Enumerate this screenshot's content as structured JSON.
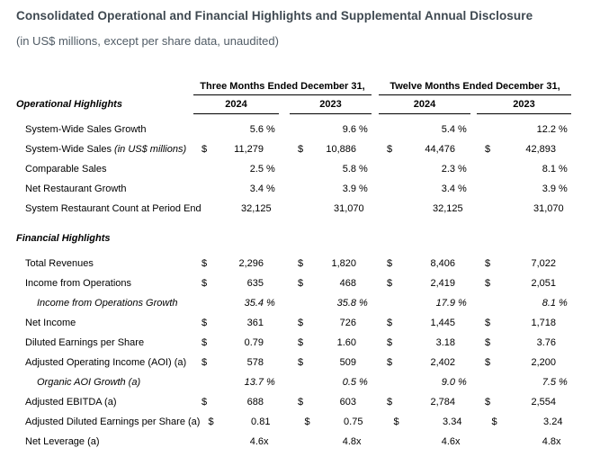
{
  "header": {
    "title": "Consolidated Operational and Financial Highlights and Supplemental Annual Disclosure",
    "subtitle": "(in US$ millions, except per share data, unaudited)"
  },
  "colors": {
    "background": "#ffffff",
    "title_text": "#3e4850",
    "subtitle_text": "#515c66",
    "table_text": "#000000",
    "rule": "#000000"
  },
  "table": {
    "column_groups": [
      {
        "label": "Three Months Ended December 31,"
      },
      {
        "label": "Twelve Months Ended December 31,"
      }
    ],
    "year_columns": [
      "2024",
      "2023",
      "2024",
      "2023"
    ],
    "sections": [
      {
        "title": "Operational Highlights",
        "rows": [
          {
            "label": "System-Wide Sales Growth",
            "cells": [
              {
                "v": "5.6",
                "s": "%"
              },
              {
                "v": "9.6",
                "s": "%"
              },
              {
                "v": "5.4",
                "s": "%"
              },
              {
                "v": "12.2",
                "s": "%"
              }
            ]
          },
          {
            "label": "System-Wide Sales",
            "note": "(in US$ millions)",
            "cells": [
              {
                "d": "$",
                "v": "11,279"
              },
              {
                "d": "$",
                "v": "10,886"
              },
              {
                "d": "$",
                "v": "44,476"
              },
              {
                "d": "$",
                "v": "42,893"
              }
            ]
          },
          {
            "label": "Comparable Sales",
            "cells": [
              {
                "v": "2.5",
                "s": "%"
              },
              {
                "v": "5.8",
                "s": "%"
              },
              {
                "v": "2.3",
                "s": "%"
              },
              {
                "v": "8.1",
                "s": "%"
              }
            ]
          },
          {
            "label": "Net Restaurant Growth",
            "cells": [
              {
                "v": "3.4",
                "s": "%"
              },
              {
                "v": "3.9",
                "s": "%"
              },
              {
                "v": "3.4",
                "s": "%"
              },
              {
                "v": "3.9",
                "s": "%"
              }
            ]
          },
          {
            "label": "System Restaurant Count at Period End",
            "cells": [
              {
                "v": "32,125"
              },
              {
                "v": "31,070"
              },
              {
                "v": "32,125"
              },
              {
                "v": "31,070"
              }
            ]
          }
        ]
      },
      {
        "title": "Financial Highlights",
        "rows": [
          {
            "label": "Total Revenues",
            "cells": [
              {
                "d": "$",
                "v": "2,296"
              },
              {
                "d": "$",
                "v": "1,820"
              },
              {
                "d": "$",
                "v": "8,406"
              },
              {
                "d": "$",
                "v": "7,022"
              }
            ]
          },
          {
            "label": "Income from Operations",
            "cells": [
              {
                "d": "$",
                "v": "635"
              },
              {
                "d": "$",
                "v": "468"
              },
              {
                "d": "$",
                "v": "2,419"
              },
              {
                "d": "$",
                "v": "2,051"
              }
            ]
          },
          {
            "label": "Income from Operations Growth",
            "italic": true,
            "indent": 2,
            "cells": [
              {
                "v": "35.4",
                "s": "%"
              },
              {
                "v": "35.8",
                "s": "%"
              },
              {
                "v": "17.9",
                "s": "%"
              },
              {
                "v": "8.1",
                "s": "%"
              }
            ]
          },
          {
            "label": "Net Income",
            "cells": [
              {
                "d": "$",
                "v": "361"
              },
              {
                "d": "$",
                "v": "726"
              },
              {
                "d": "$",
                "v": "1,445"
              },
              {
                "d": "$",
                "v": "1,718"
              }
            ]
          },
          {
            "label": "Diluted Earnings per Share",
            "cells": [
              {
                "d": "$",
                "v": "0.79"
              },
              {
                "d": "$",
                "v": "1.60"
              },
              {
                "d": "$",
                "v": "3.18"
              },
              {
                "d": "$",
                "v": "3.76"
              }
            ]
          },
          {
            "label": "Adjusted Operating Income (AOI) (a)",
            "cells": [
              {
                "d": "$",
                "v": "578"
              },
              {
                "d": "$",
                "v": "509"
              },
              {
                "d": "$",
                "v": "2,402"
              },
              {
                "d": "$",
                "v": "2,200"
              }
            ]
          },
          {
            "label": "Organic AOI Growth (a)",
            "italic": true,
            "indent": 2,
            "cells": [
              {
                "v": "13.7",
                "s": "%"
              },
              {
                "v": "0.5",
                "s": "%"
              },
              {
                "v": "9.0",
                "s": "%"
              },
              {
                "v": "7.5",
                "s": "%"
              }
            ]
          },
          {
            "label": "Adjusted EBITDA (a)",
            "cells": [
              {
                "d": "$",
                "v": "688"
              },
              {
                "d": "$",
                "v": "603"
              },
              {
                "d": "$",
                "v": "2,784"
              },
              {
                "d": "$",
                "v": "2,554"
              }
            ]
          },
          {
            "label": "Adjusted Diluted Earnings per Share (a)",
            "cells": [
              {
                "d": "$",
                "v": "0.81"
              },
              {
                "d": "$",
                "v": "0.75"
              },
              {
                "d": "$",
                "v": "3.34"
              },
              {
                "d": "$",
                "v": "3.24"
              }
            ]
          },
          {
            "label": "Net Leverage (a)",
            "cells": [
              {
                "v": "4.6",
                "s": "x"
              },
              {
                "v": "4.8",
                "s": "x"
              },
              {
                "v": "4.6",
                "s": "x"
              },
              {
                "v": "4.8",
                "s": "x"
              }
            ]
          }
        ]
      }
    ]
  }
}
